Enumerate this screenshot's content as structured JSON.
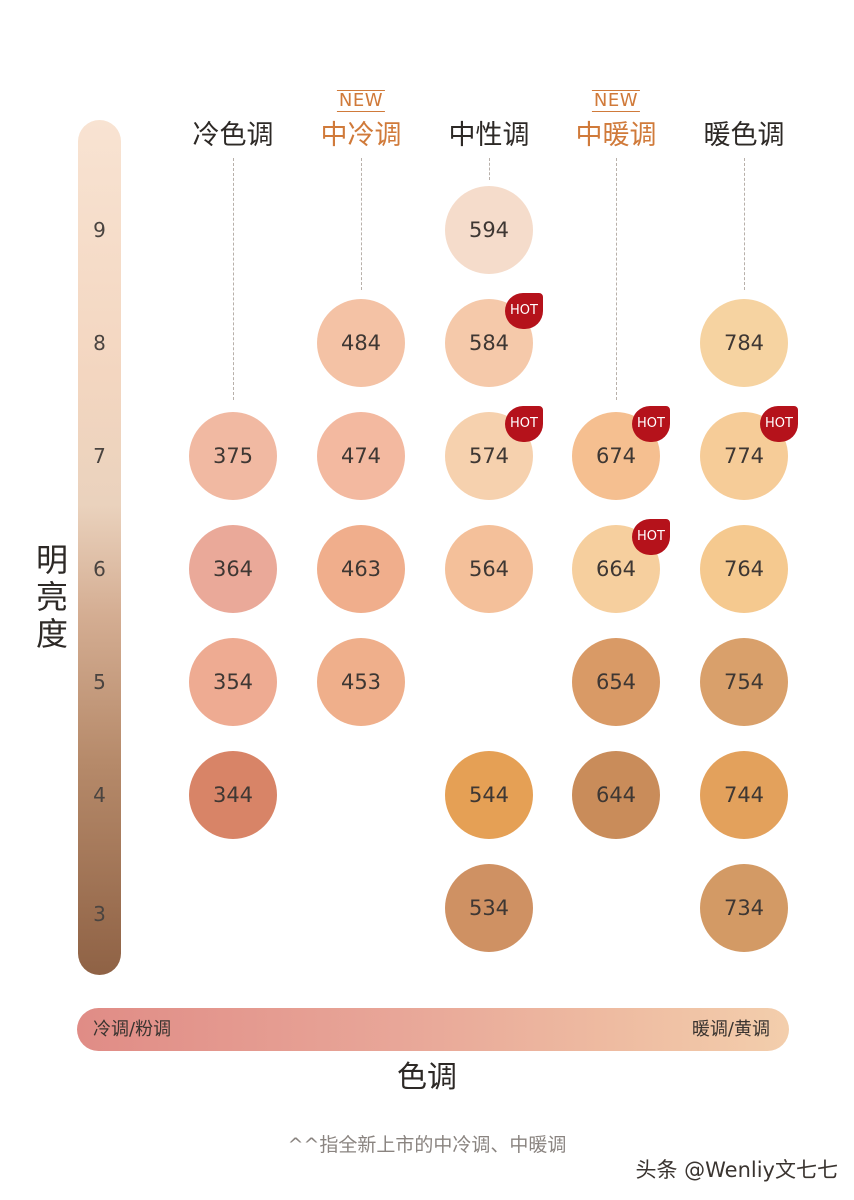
{
  "axis": {
    "brightness_label": "明亮度",
    "levels": [
      "9",
      "8",
      "7",
      "6",
      "5",
      "4",
      "3"
    ],
    "tone_label": "色调",
    "tone_left": "冷调/粉调",
    "tone_right": "暖调/黄调"
  },
  "columns": [
    {
      "label": "冷色调",
      "is_new": false,
      "new_tag": ""
    },
    {
      "label": "中冷调",
      "is_new": true,
      "new_tag": "NEW"
    },
    {
      "label": "中性调",
      "is_new": false,
      "new_tag": ""
    },
    {
      "label": "中暖调",
      "is_new": true,
      "new_tag": "NEW"
    },
    {
      "label": "暖色调",
      "is_new": false,
      "new_tag": ""
    }
  ],
  "hot_label": "HOT",
  "swatches": [
    {
      "shade": "594",
      "column": 2,
      "level": "9",
      "hot": false,
      "color": "#f5dccb"
    },
    {
      "shade": "484",
      "column": 1,
      "level": "8",
      "hot": false,
      "color": "#f4c2a5"
    },
    {
      "shade": "584",
      "column": 2,
      "level": "8",
      "hot": true,
      "color": "#f5c9aa"
    },
    {
      "shade": "784",
      "column": 4,
      "level": "8",
      "hot": false,
      "color": "#f6d3a1"
    },
    {
      "shade": "375",
      "column": 0,
      "level": "7",
      "hot": false,
      "color": "#f1b9a2"
    },
    {
      "shade": "474",
      "column": 1,
      "level": "7",
      "hot": false,
      "color": "#f3b9a0"
    },
    {
      "shade": "574",
      "column": 2,
      "level": "7",
      "hot": true,
      "color": "#f6d1ae"
    },
    {
      "shade": "674",
      "column": 3,
      "level": "7",
      "hot": true,
      "color": "#f5bf90"
    },
    {
      "shade": "774",
      "column": 4,
      "level": "7",
      "hot": true,
      "color": "#f6cc98"
    },
    {
      "shade": "364",
      "column": 0,
      "level": "6",
      "hot": false,
      "color": "#eaa999"
    },
    {
      "shade": "463",
      "column": 1,
      "level": "6",
      "hot": false,
      "color": "#f0ae8c"
    },
    {
      "shade": "564",
      "column": 2,
      "level": "6",
      "hot": false,
      "color": "#f4c09a"
    },
    {
      "shade": "664",
      "column": 3,
      "level": "6",
      "hot": true,
      "color": "#f6cf9e"
    },
    {
      "shade": "764",
      "column": 4,
      "level": "6",
      "hot": false,
      "color": "#f5c98f"
    },
    {
      "shade": "354",
      "column": 0,
      "level": "5",
      "hot": false,
      "color": "#eeab92"
    },
    {
      "shade": "453",
      "column": 1,
      "level": "5",
      "hot": false,
      "color": "#efaf8b"
    },
    {
      "shade": "654",
      "column": 3,
      "level": "5",
      "hot": false,
      "color": "#d99a66"
    },
    {
      "shade": "754",
      "column": 4,
      "level": "5",
      "hot": false,
      "color": "#d9a06b"
    },
    {
      "shade": "344",
      "column": 0,
      "level": "4",
      "hot": false,
      "color": "#d88467"
    },
    {
      "shade": "544",
      "column": 2,
      "level": "4",
      "hot": false,
      "color": "#e5a055"
    },
    {
      "shade": "644",
      "column": 3,
      "level": "4",
      "hot": false,
      "color": "#c98c5a"
    },
    {
      "shade": "744",
      "column": 4,
      "level": "4",
      "hot": false,
      "color": "#e3a15c"
    },
    {
      "shade": "534",
      "column": 2,
      "level": "3",
      "hot": false,
      "color": "#cf9163"
    },
    {
      "shade": "734",
      "column": 4,
      "level": "3",
      "hot": false,
      "color": "#d39a65"
    }
  ],
  "footnote": "^^指全新上市的中冷调、中暖调",
  "watermark": "头条 @Wenliy文七七",
  "colors": {
    "accent_orange": "#d07a3a",
    "hot_badge": "#b5121b"
  }
}
